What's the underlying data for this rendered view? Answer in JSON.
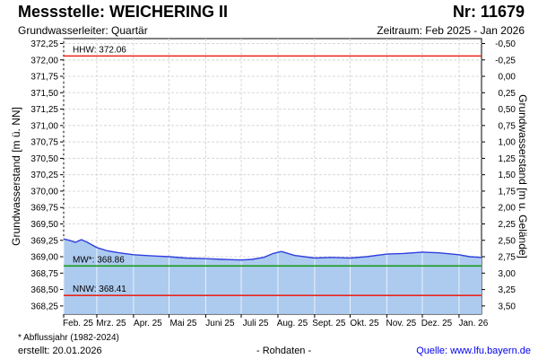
{
  "header": {
    "title": "Messstelle: WEICHERING II",
    "number": "Nr: 11679",
    "aquifer": "Grundwasserleiter: Quartär",
    "period": "Zeitraum: Feb 2025 - Jan 2026"
  },
  "footer": {
    "footnote": "* Abflussjahr (1982-2024)",
    "created": "erstellt:  20.01.2026",
    "rawdata": "- Rohdaten -",
    "source": "Quelle:  www.lfu.bayern.de"
  },
  "chart_data": {
    "type": "area",
    "ylabel": "Grundwasserstand [m ü. NN]",
    "y2label": "Grundwasserstand [m u. Gelände]",
    "ylim": [
      368.125,
      372.325
    ],
    "yticks": [
      372.25,
      372.0,
      371.75,
      371.5,
      371.25,
      371.0,
      370.75,
      370.5,
      370.25,
      370.0,
      369.75,
      369.5,
      369.25,
      369.0,
      368.75,
      368.5,
      368.25
    ],
    "yticklabels": [
      "372,25",
      "372,00",
      "371,75",
      "371,50",
      "371,25",
      "371,00",
      "370,75",
      "370,50",
      "370,25",
      "370,00",
      "369,75",
      "369,50",
      "369,25",
      "369,00",
      "368,75",
      "368,50",
      "368,25"
    ],
    "y2ticks": [
      -0.5,
      -0.25,
      0.0,
      0.25,
      0.5,
      0.75,
      1.0,
      1.25,
      1.5,
      1.75,
      2.0,
      2.25,
      2.5,
      2.75,
      3.0,
      3.25,
      3.5
    ],
    "y2ticklabels": [
      "-0,50",
      "-0,25",
      "0,00",
      "0,25",
      "0,50",
      "0,75",
      "1,00",
      "1,25",
      "1,50",
      "1,75",
      "2,00",
      "2,25",
      "2,50",
      "2,75",
      "3,00",
      "3,25",
      "3,50"
    ],
    "ground_level": 371.75,
    "xrange": [
      "2025-02-01",
      "2026-01-20"
    ],
    "xticks": [
      "2025-02-01",
      "2025-03-01",
      "2025-04-01",
      "2025-05-01",
      "2025-06-01",
      "2025-07-01",
      "2025-08-01",
      "2025-09-01",
      "2025-10-01",
      "2025-11-01",
      "2025-12-01",
      "2026-01-01"
    ],
    "xticklabels": [
      "Feb. 25",
      "Mrz. 25",
      "Apr. 25",
      "Mai 25",
      "Juni 25",
      "Juli 25",
      "Aug. 25",
      "Sept. 25",
      "Okt. 25",
      "Nov. 25",
      "Dez. 25",
      "Jan. 26"
    ],
    "grid": true,
    "series": {
      "dates": [
        "2025-02-01",
        "2025-02-06",
        "2025-02-11",
        "2025-02-16",
        "2025-02-21",
        "2025-03-01",
        "2025-03-10",
        "2025-03-20",
        "2025-04-01",
        "2025-04-10",
        "2025-04-20",
        "2025-05-01",
        "2025-05-15",
        "2025-06-01",
        "2025-06-15",
        "2025-07-01",
        "2025-07-10",
        "2025-07-20",
        "2025-07-28",
        "2025-08-04",
        "2025-08-15",
        "2025-09-01",
        "2025-09-15",
        "2025-10-01",
        "2025-10-15",
        "2025-11-01",
        "2025-11-15",
        "2025-12-01",
        "2025-12-15",
        "2026-01-01",
        "2026-01-10",
        "2026-01-20"
      ],
      "values": [
        369.27,
        369.25,
        369.22,
        369.26,
        369.22,
        369.14,
        369.09,
        369.06,
        369.03,
        369.02,
        369.01,
        369.0,
        368.98,
        368.97,
        368.96,
        368.95,
        368.96,
        368.99,
        369.05,
        369.08,
        369.02,
        368.98,
        368.99,
        368.98,
        369.0,
        369.04,
        369.05,
        369.07,
        369.06,
        369.03,
        369.0,
        368.99
      ]
    },
    "reference_lines": [
      {
        "name": "HHW",
        "label": "HHW: 372.06",
        "value": 372.06,
        "color": "#e8271b"
      },
      {
        "name": "MW",
        "label": "MW*: 368.86",
        "value": 368.86,
        "color": "#1a9a1a"
      },
      {
        "name": "NNW",
        "label": "NNW: 368.41",
        "value": 368.41,
        "color": "#e8271b"
      }
    ],
    "colors": {
      "line": "#2f3fdd",
      "fill": "#a9c8ee",
      "grid": "#d8d8d8"
    }
  }
}
